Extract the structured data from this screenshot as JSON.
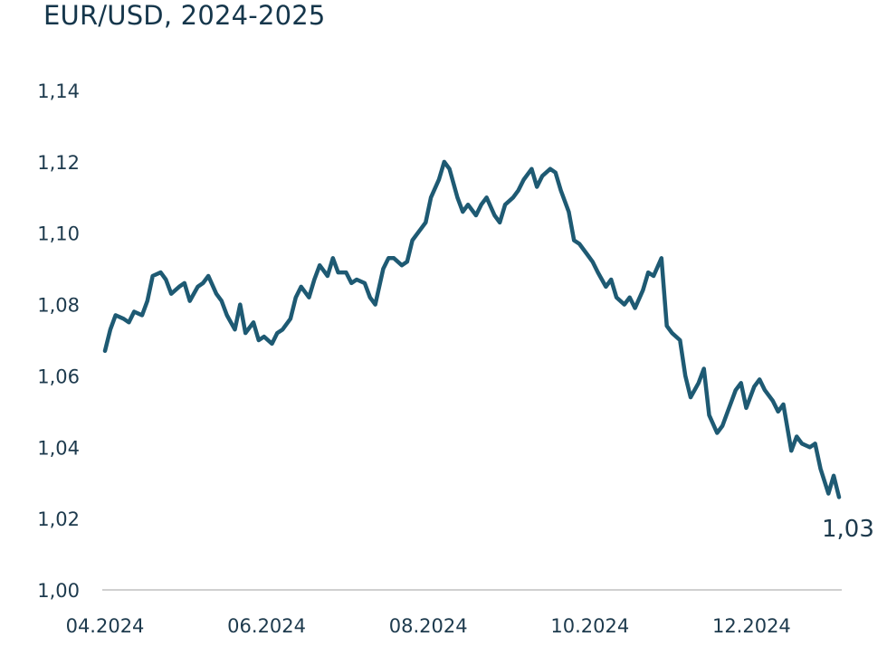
{
  "chart_data": {
    "type": "line",
    "title": "EUR/USD, 2024-2025",
    "xlabel": "",
    "ylabel": "",
    "x_range": [
      "2024-04-01",
      "2025-01-03"
    ],
    "x_ticks": [
      {
        "date": "2024-04-01",
        "label": "04.2024"
      },
      {
        "date": "2024-06-01",
        "label": "06.2024"
      },
      {
        "date": "2024-08-01",
        "label": "08.2024"
      },
      {
        "date": "2024-10-01",
        "label": "10.2024"
      },
      {
        "date": "2024-12-01",
        "label": "12.2024"
      }
    ],
    "ylim": [
      1.0,
      1.14
    ],
    "y_ticks": [
      {
        "value": 1.0,
        "label": "1,00"
      },
      {
        "value": 1.02,
        "label": "1,02"
      },
      {
        "value": 1.04,
        "label": "1,04"
      },
      {
        "value": 1.06,
        "label": "1,06"
      },
      {
        "value": 1.08,
        "label": "1,08"
      },
      {
        "value": 1.1,
        "label": "1,10"
      },
      {
        "value": 1.12,
        "label": "1,12"
      },
      {
        "value": 1.14,
        "label": "1,14"
      }
    ],
    "grid": false,
    "legend": "none",
    "line_color": "#1e5a73",
    "axis_color": "#d0d0d0",
    "end_label": "1,03",
    "series": [
      {
        "x": [
          "2024-04-01",
          "2024-04-03",
          "2024-04-05",
          "2024-04-08",
          "2024-04-10",
          "2024-04-12",
          "2024-04-15",
          "2024-04-17",
          "2024-04-19",
          "2024-04-22",
          "2024-04-24",
          "2024-04-26",
          "2024-04-29",
          "2024-05-01",
          "2024-05-03",
          "2024-05-06",
          "2024-05-08",
          "2024-05-10",
          "2024-05-13",
          "2024-05-15",
          "2024-05-17",
          "2024-05-20",
          "2024-05-22",
          "2024-05-24",
          "2024-05-27",
          "2024-05-29",
          "2024-05-31",
          "2024-06-03",
          "2024-06-05",
          "2024-06-07",
          "2024-06-10",
          "2024-06-12",
          "2024-06-14",
          "2024-06-17",
          "2024-06-19",
          "2024-06-21",
          "2024-06-24",
          "2024-06-26",
          "2024-06-28",
          "2024-07-01",
          "2024-07-03",
          "2024-07-05",
          "2024-07-08",
          "2024-07-10",
          "2024-07-12",
          "2024-07-15",
          "2024-07-17",
          "2024-07-19",
          "2024-07-22",
          "2024-07-24",
          "2024-07-26",
          "2024-07-29",
          "2024-07-31",
          "2024-08-02",
          "2024-08-05",
          "2024-08-07",
          "2024-08-09",
          "2024-08-12",
          "2024-08-14",
          "2024-08-16",
          "2024-08-19",
          "2024-08-21",
          "2024-08-23",
          "2024-08-26",
          "2024-08-28",
          "2024-08-30",
          "2024-09-02",
          "2024-09-04",
          "2024-09-06",
          "2024-09-09",
          "2024-09-11",
          "2024-09-13",
          "2024-09-16",
          "2024-09-18",
          "2024-09-20",
          "2024-09-23",
          "2024-09-25",
          "2024-09-27",
          "2024-09-30",
          "2024-10-02",
          "2024-10-04",
          "2024-10-07",
          "2024-10-09",
          "2024-10-11",
          "2024-10-14",
          "2024-10-16",
          "2024-10-18",
          "2024-10-21",
          "2024-10-23",
          "2024-10-25",
          "2024-10-28",
          "2024-10-30",
          "2024-11-01",
          "2024-11-04",
          "2024-11-06",
          "2024-11-08",
          "2024-11-11",
          "2024-11-13",
          "2024-11-15",
          "2024-11-18",
          "2024-11-20",
          "2024-11-22",
          "2024-11-25",
          "2024-11-27",
          "2024-11-29",
          "2024-12-02",
          "2024-12-04",
          "2024-12-06",
          "2024-12-09",
          "2024-12-11",
          "2024-12-13",
          "2024-12-16",
          "2024-12-18",
          "2024-12-20",
          "2024-12-23",
          "2024-12-25",
          "2024-12-27",
          "2024-12-30",
          "2025-01-01",
          "2025-01-03"
        ],
        "values": [
          1.067,
          1.073,
          1.077,
          1.076,
          1.075,
          1.078,
          1.077,
          1.081,
          1.088,
          1.089,
          1.087,
          1.083,
          1.085,
          1.086,
          1.081,
          1.085,
          1.086,
          1.088,
          1.083,
          1.081,
          1.077,
          1.073,
          1.08,
          1.072,
          1.075,
          1.07,
          1.071,
          1.069,
          1.072,
          1.073,
          1.076,
          1.082,
          1.085,
          1.082,
          1.087,
          1.091,
          1.088,
          1.093,
          1.089,
          1.089,
          1.086,
          1.087,
          1.086,
          1.082,
          1.08,
          1.09,
          1.093,
          1.093,
          1.091,
          1.092,
          1.098,
          1.101,
          1.103,
          1.11,
          1.115,
          1.12,
          1.118,
          1.11,
          1.106,
          1.108,
          1.105,
          1.108,
          1.11,
          1.105,
          1.103,
          1.108,
          1.11,
          1.112,
          1.115,
          1.118,
          1.113,
          1.116,
          1.118,
          1.117,
          1.112,
          1.106,
          1.098,
          1.097,
          1.094,
          1.092,
          1.089,
          1.085,
          1.087,
          1.082,
          1.08,
          1.082,
          1.079,
          1.084,
          1.089,
          1.088,
          1.093,
          1.074,
          1.072,
          1.07,
          1.06,
          1.054,
          1.058,
          1.062,
          1.049,
          1.044,
          1.046,
          1.05,
          1.056,
          1.058,
          1.051,
          1.057,
          1.059,
          1.056,
          1.053,
          1.05,
          1.052,
          1.039,
          1.043,
          1.041,
          1.04,
          1.041,
          1.034,
          1.027,
          1.032,
          1.026
        ]
      }
    ]
  }
}
